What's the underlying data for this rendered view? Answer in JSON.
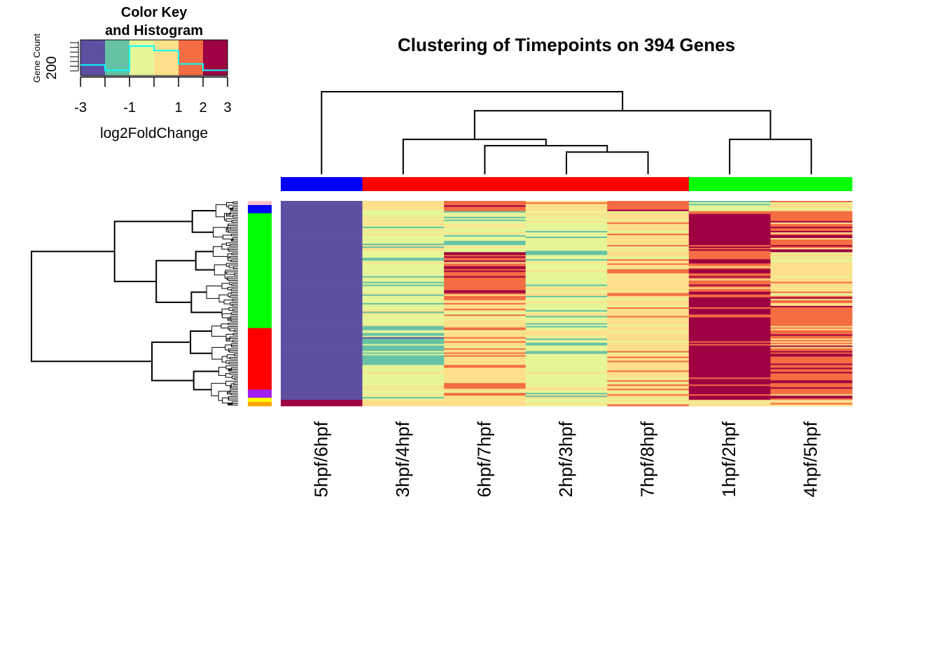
{
  "palette": {
    "bins": [
      "#5E4FA2",
      "#66C2A5",
      "#E6F598",
      "#FEE08B",
      "#F46D43",
      "#9E0142"
    ],
    "histogram_line": "#00FFFF",
    "dendrogram_line": "#000000"
  },
  "chart_data": {
    "type": "heatmap",
    "title": "Clustering of Timepoints on 394 Genes",
    "value_label": "log2FoldChange",
    "n_genes": 394,
    "columns": [
      "5hpf/6hpf",
      "3hpf/4hpf",
      "6hpf/7hpf",
      "2hpf/3hpf",
      "7hpf/8hpf",
      "1hpf/2hpf",
      "4hpf/5hpf"
    ],
    "column_clusters": [
      "#0000FF",
      "#FF0000",
      "#FF0000",
      "#FF0000",
      "#FF0000",
      "#00FF00",
      "#00FF00"
    ],
    "column_dendrogram": [
      {
        "a": [
          3,
          4
        ],
        "h": 0.35
      },
      {
        "a": [
          2,
          "m0"
        ],
        "h": 0.45
      },
      {
        "a": [
          1,
          "m1"
        ],
        "h": 0.55
      },
      {
        "a": [
          5,
          6
        ],
        "h": 0.55
      },
      {
        "a": [
          "m2",
          "m3"
        ],
        "h": 1.0
      },
      {
        "a": [
          0,
          "m4"
        ],
        "h": 1.3
      }
    ],
    "row_clusters": [
      {
        "color": "#FFC0CB",
        "fraction": 0.02
      },
      {
        "color": "#0000FF",
        "fraction": 0.04
      },
      {
        "color": "#00FF00",
        "fraction": 0.56
      },
      {
        "color": "#FF0000",
        "fraction": 0.3
      },
      {
        "color": "#A020F0",
        "fraction": 0.04
      },
      {
        "color": "#FFFF00",
        "fraction": 0.02
      },
      {
        "color": "#FFA500",
        "fraction": 0.02
      }
    ],
    "row_blocks": [
      {
        "fraction": 0.05,
        "levels": [
          0,
          3,
          4,
          3,
          4,
          2,
          3
        ]
      },
      {
        "fraction": 0.2,
        "levels": [
          0,
          2,
          2,
          2,
          3,
          5,
          4
        ]
      },
      {
        "fraction": 0.22,
        "levels": [
          0,
          2,
          4,
          2,
          3,
          4,
          3
        ]
      },
      {
        "fraction": 0.14,
        "levels": [
          0,
          2,
          3,
          2,
          3,
          5,
          4
        ]
      },
      {
        "fraction": 0.19,
        "levels": [
          0,
          1,
          3,
          2,
          3,
          5,
          4
        ]
      },
      {
        "fraction": 0.17,
        "levels": [
          0,
          2,
          3,
          2,
          3,
          5,
          4
        ]
      },
      {
        "fraction": 0.03,
        "levels": [
          5,
          3,
          3,
          2,
          3,
          3,
          3
        ]
      }
    ],
    "color_key": {
      "title": "Color Key\nand Histogram",
      "breaks": [
        -3,
        -2,
        -1,
        0,
        1,
        2,
        3
      ],
      "tick_labels": [
        "-3",
        "-1",
        "1",
        "2",
        "3"
      ],
      "tick_values": [
        -3,
        -1,
        1,
        2,
        3
      ],
      "xlabel": "log2FoldChange",
      "ylabel": "Gene Count",
      "y_tick_label": "200",
      "histogram_counts": [
        120,
        60,
        330,
        280,
        130,
        60
      ]
    }
  }
}
